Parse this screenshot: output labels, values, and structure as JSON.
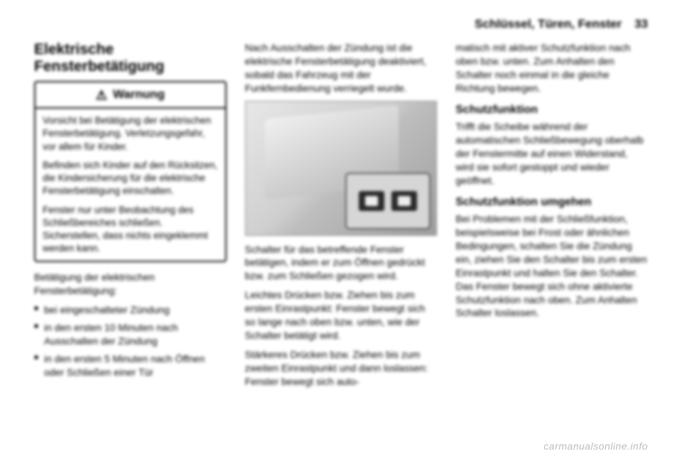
{
  "header": {
    "section": "Schlüssel, Türen, Fenster",
    "page": "33"
  },
  "col1": {
    "title": "Elektrische Fensterbetätigung",
    "warning": {
      "label": "Warnung",
      "p1": "Vorsicht bei Betätigung der elektrischen Fensterbetätigung. Verletzungsgefahr, vor allem für Kinder.",
      "p2": "Befinden sich Kinder auf den Rücksitzen, die Kindersicherung für die elektrische Fensterbetätigung einschalten.",
      "p3": "Fenster nur unter Beobachtung des Schließbereiches schließen. Sicherstellen, dass nichts eingeklemmt werden kann."
    },
    "intro": "Betätigung der elektrischen Fensterbetätigung:",
    "b1": "bei eingeschalteter Zündung",
    "b2": "in den ersten 10 Minuten nach Ausschalten der Zündung",
    "b3": "in den ersten 5 Minuten nach Öffnen oder Schließen einer Tür"
  },
  "col2": {
    "p1": "Nach Ausschalten der Zündung ist die elektrische Fensterbetätigung deaktiviert, sobald das Fahrzeug mit der Funkfernbedienung verriegelt wurde.",
    "p2": "Schalter für das betreffende Fenster betätigen, indem er zum Öffnen gedrückt bzw. zum Schließen gezogen wird.",
    "p3": "Leichtes Drücken bzw. Ziehen bis zum ersten Einrastpunkt: Fenster bewegt sich so lange nach oben bzw. unten, wie der Schalter betätigt wird.",
    "p4": "Stärkeres Drücken bzw. Ziehen bis zum zweiten Einrastpunkt und dann loslassen: Fenster bewegt sich auto-"
  },
  "col3": {
    "p1": "matisch mit aktiver Schutzfunktion nach oben bzw. unten. Zum Anhalten den Schalter noch einmal in die gleiche Richtung bewegen.",
    "h_schutz": "Schutzfunktion",
    "p_schutz": "Trifft die Scheibe während der automatischen Schließbewegung oberhalb der Fenstermitte auf einen Widerstand, wird sie sofort gestoppt und wieder geöffnet.",
    "h_umgehen": "Schutzfunktion umgehen",
    "p_umgehen": "Bei Problemen mit der Schließfunktion, beispielsweise bei Frost oder ähnlichen Bedingungen, schalten Sie die Zündung ein, ziehen Sie den Schalter bis zum ersten Einrastpunkt und halten Sie den Schalter. Das Fenster bewegt sich ohne aktivierte Schutzfunktion nach oben. Zum Anhalten Schalter loslassen."
  },
  "watermark": "carmanualsonline.info"
}
